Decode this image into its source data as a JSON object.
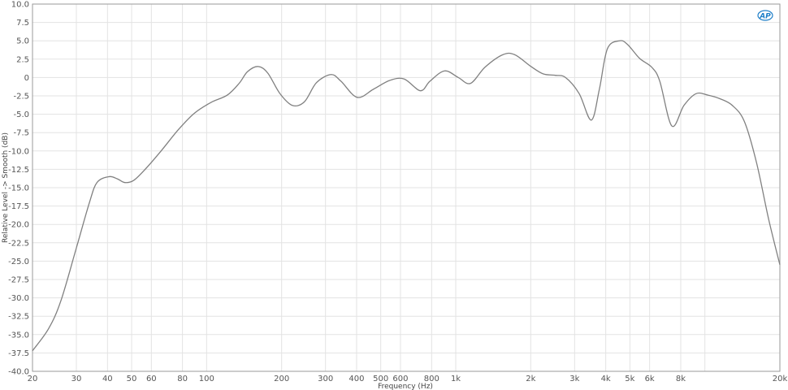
{
  "chart_data": {
    "type": "line",
    "title": "",
    "xlabel": "Frequency (Hz)",
    "ylabel": "Relative Level -> Smooth (dB)",
    "xscale": "log",
    "xlim": [
      20,
      20000
    ],
    "ylim": [
      -40,
      10
    ],
    "grid": true,
    "x_ticks": [
      {
        "value": 20,
        "label": "20"
      },
      {
        "value": 30,
        "label": "30"
      },
      {
        "value": 40,
        "label": "40"
      },
      {
        "value": 50,
        "label": "50"
      },
      {
        "value": 60,
        "label": "60"
      },
      {
        "value": 80,
        "label": "80"
      },
      {
        "value": 100,
        "label": "100"
      },
      {
        "value": 200,
        "label": "200"
      },
      {
        "value": 300,
        "label": "300"
      },
      {
        "value": 400,
        "label": "400"
      },
      {
        "value": 500,
        "label": "500"
      },
      {
        "value": 600,
        "label": "600"
      },
      {
        "value": 800,
        "label": "800"
      },
      {
        "value": 1000,
        "label": "1k"
      },
      {
        "value": 2000,
        "label": "2k"
      },
      {
        "value": 3000,
        "label": "3k"
      },
      {
        "value": 4000,
        "label": "4k"
      },
      {
        "value": 5000,
        "label": "5k"
      },
      {
        "value": 6000,
        "label": "6k"
      },
      {
        "value": 8000,
        "label": "8k"
      },
      {
        "value": 10000,
        "label": ""
      },
      {
        "value": 20000,
        "label": "20k"
      }
    ],
    "y_ticks": [
      "10.0",
      "7.5",
      "5.0",
      "2.5",
      "0",
      "-2.5",
      "-5.0",
      "-7.5",
      "-10.0",
      "-12.5",
      "-15.0",
      "-17.5",
      "-20.0",
      "-22.5",
      "-25.0",
      "-27.5",
      "-30.0",
      "-32.5",
      "-35.0",
      "-37.5",
      "-40.0"
    ],
    "series": [
      {
        "color": "#808080",
        "x": [
          20,
          23.2,
          26,
          30,
          33.8,
          36.3,
          40.6,
          43.8,
          47,
          51,
          57,
          66,
          77,
          89,
          104,
          121,
          135,
          146,
          161,
          176,
          197,
          221,
          247,
          276,
          316,
          346,
          402,
          467,
          543,
          621,
          721,
          788,
          902,
          1024,
          1146,
          1310,
          1544,
          1726,
          2004,
          2241,
          2505,
          2758,
          3130,
          3500,
          3771,
          4060,
          4542,
          4893,
          5470,
          6120,
          6590,
          7370,
          8240,
          9216,
          10300,
          11520,
          12890,
          14410,
          16120,
          18030,
          20000
        ],
        "y": [
          -37.2,
          -34.2,
          -30.4,
          -23.2,
          -17.1,
          -14.3,
          -13.5,
          -13.8,
          -14.3,
          -14,
          -12.4,
          -9.9,
          -7.1,
          -4.9,
          -3.4,
          -2.4,
          -0.8,
          0.8,
          1.5,
          0.6,
          -2.2,
          -3.8,
          -3.3,
          -0.7,
          0.4,
          -0.5,
          -2.7,
          -1.6,
          -0.4,
          -0.2,
          -1.8,
          -0.5,
          0.9,
          0,
          -0.8,
          1.4,
          3.1,
          3.1,
          1.5,
          0.5,
          0.3,
          0,
          -2.2,
          -5.8,
          -1.6,
          3.9,
          5.0,
          4.5,
          2.6,
          1.4,
          -0.5,
          -6.6,
          -3.8,
          -2.2,
          -2.4,
          -2.9,
          -3.8,
          -6,
          -11.6,
          -19.3,
          -25.5
        ]
      }
    ]
  },
  "logo": {
    "text": "AP",
    "color": "#1f7fc8"
  }
}
